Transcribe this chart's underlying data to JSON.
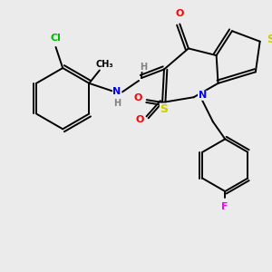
{
  "background_color": "#ebebeb",
  "bond_color": "#000000",
  "atom_colors": {
    "Cl": "#00bb00",
    "N": "#0000ff",
    "H": "#808080",
    "S": "#cccc00",
    "O": "#ff0000",
    "F": "#ff00ff",
    "C": "#000000"
  },
  "figsize": [
    3.0,
    3.0
  ],
  "dpi": 100
}
